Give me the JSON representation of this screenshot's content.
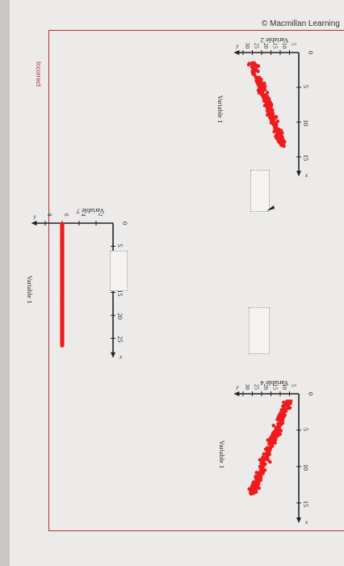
{
  "header": {
    "credit": "© Macmillan Learning"
  },
  "status": {
    "label": "Incorrect"
  },
  "colors": {
    "points": "#ee1c1c",
    "border": "#b0323c",
    "axis": "#222222"
  },
  "chart_data": [
    {
      "type": "scatter",
      "ylabel": "Variable 2",
      "xlabel": "Variable 1",
      "x_axis_letter": "x",
      "y_axis_letter": "y",
      "origin_label": "0",
      "x_ticks": [
        "5",
        "10",
        "15"
      ],
      "y_ticks": [
        "5",
        "10",
        "15",
        "20",
        "25",
        "30"
      ],
      "xlim": [
        0,
        17
      ],
      "ylim": [
        0,
        32
      ],
      "relationship": "negative linear",
      "point_cloud": {
        "n": 260,
        "x_range": [
          1.5,
          13.5
        ],
        "y_center_at_x_min": 25,
        "slope": -1.4,
        "spread": 1.6
      }
    },
    {
      "type": "scatter",
      "ylabel": "Variable 4",
      "xlabel": "Variable 1",
      "x_axis_letter": "x",
      "y_axis_letter": "y",
      "origin_label": "0",
      "x_ticks": [
        "5",
        "10",
        "15"
      ],
      "y_ticks": [
        "5",
        "10",
        "15",
        "20",
        "25",
        "30"
      ],
      "xlim": [
        0,
        17
      ],
      "ylim": [
        0,
        32
      ],
      "relationship": "positive linear",
      "point_cloud": {
        "n": 260,
        "x_range": [
          1.0,
          13.8
        ],
        "y_center_at_x_min": 6,
        "slope": 1.5,
        "spread": 1.8
      }
    },
    {
      "type": "scatter",
      "ylabel": "Variable 7",
      "xlabel": "Variable 1",
      "x_axis_letter": "x",
      "y_axis_letter": "y",
      "origin_label": "0",
      "x_ticks": [
        "5",
        "10",
        "15",
        "20",
        "25"
      ],
      "y_ticks": [
        "2",
        "4",
        "6",
        "8"
      ],
      "xlim": [
        0,
        28
      ],
      "ylim": [
        0,
        9
      ],
      "relationship": "none (constant y)",
      "constant_y": 6,
      "point_x_range": [
        0.2,
        26.5
      ]
    }
  ]
}
